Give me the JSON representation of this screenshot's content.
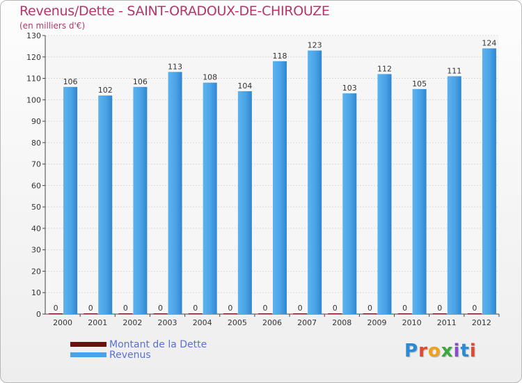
{
  "title": "Revenus/Dette - SAINT-ORADOUX-DE-CHIROUZE",
  "subtitle": "(en milliers d'€)",
  "chart_data": {
    "type": "bar",
    "categories": [
      "2000",
      "2001",
      "2002",
      "2003",
      "2004",
      "2005",
      "2006",
      "2007",
      "2008",
      "2009",
      "2010",
      "2011",
      "2012"
    ],
    "series": [
      {
        "name": "Montant de la Dette",
        "values": [
          0,
          0,
          0,
          0,
          0,
          0,
          0,
          0,
          0,
          0,
          0,
          0,
          0
        ],
        "color": "#6b0f0f"
      },
      {
        "name": "Revenus",
        "values": [
          106,
          102,
          106,
          113,
          108,
          104,
          118,
          123,
          103,
          112,
          105,
          111,
          124
        ],
        "color": "#4aa3e6"
      }
    ],
    "yticks": [
      "0",
      "10",
      "20",
      "30",
      "40",
      "50",
      "60",
      "70",
      "80",
      "90",
      "100",
      "110",
      "120",
      "130"
    ],
    "ylim": [
      0,
      130
    ],
    "grid": true,
    "legend_position": "bottom-left"
  },
  "logo": [
    "P",
    "r",
    "o",
    "x",
    "i",
    "t",
    "i"
  ],
  "colors": {
    "title": "#b5356a",
    "legend_text": "#5b6fd4",
    "logo": [
      "#2a8ad6",
      "#e2482f",
      "#f0a11c",
      "#3aa83a",
      "#8a4bc9",
      "#2a8ad6",
      "#e2482f"
    ]
  }
}
